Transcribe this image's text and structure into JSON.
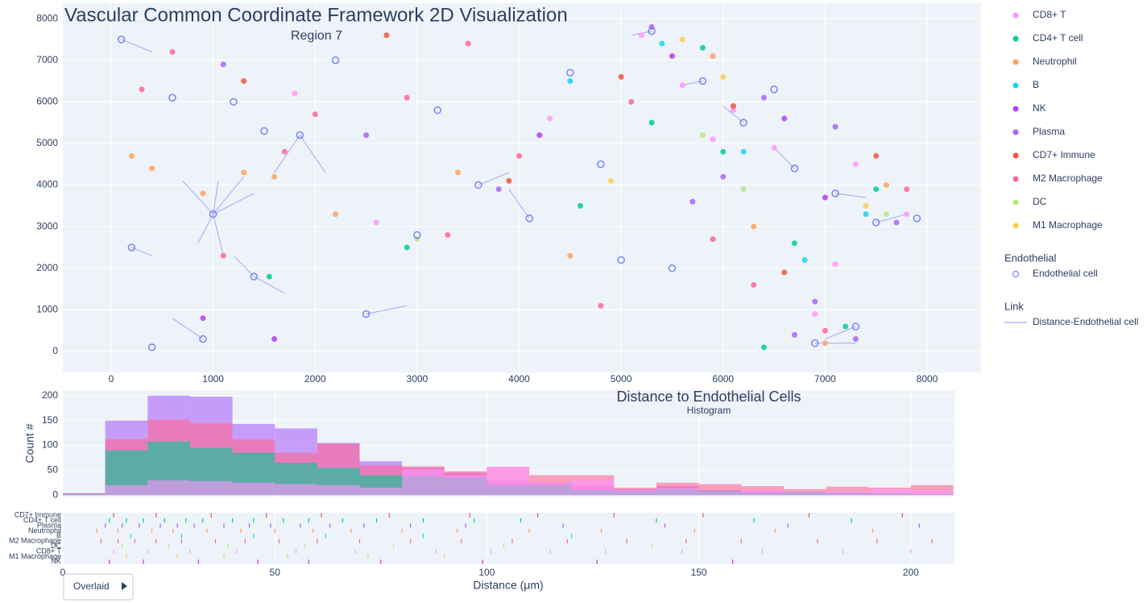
{
  "chart_data": [
    {
      "type": "scatter",
      "title": "Vascular Common Coordinate Framework 2D Visualization",
      "subtitle": "Region 7",
      "xlim": [
        -474,
        8529
      ],
      "ylim": [
        -504,
        8370
      ],
      "xticks": [
        0,
        1000,
        2000,
        3000,
        4000,
        5000,
        6000,
        7000,
        8000
      ],
      "yticks": [
        0,
        1000,
        2000,
        3000,
        4000,
        5000,
        6000,
        7000,
        8000
      ],
      "grid": true,
      "legend": "right",
      "series": [
        {
          "name": "CD8+ T",
          "color": "#FF97FF",
          "mode": "markers",
          "x": [
            5200,
            6100,
            7300,
            5600,
            7800,
            4300,
            6900,
            1800,
            2600,
            7100,
            5900,
            6500
          ],
          "y": [
            7600,
            5800,
            4500,
            6400,
            3300,
            5600,
            900,
            6200,
            3100,
            2100,
            5100,
            4900
          ]
        },
        {
          "name": "CD4+ T cell",
          "color": "#00cc96",
          "mode": "markers",
          "x": [
            5800,
            6700,
            6000,
            7200,
            4600,
            6400,
            2900,
            7500,
            5300,
            1550
          ],
          "y": [
            7300,
            2600,
            4800,
            600,
            3500,
            100,
            2500,
            3900,
            5500,
            1800
          ]
        },
        {
          "name": "Neutrophil",
          "color": "#FFA15A",
          "mode": "markers",
          "x": [
            400,
            1600,
            1300,
            5900,
            7600,
            6300,
            900,
            2200,
            3400,
            7000,
            4500,
            200
          ],
          "y": [
            4400,
            4200,
            4300,
            7100,
            4000,
            3000,
            3800,
            3300,
            4300,
            200,
            2300,
            4700
          ]
        },
        {
          "name": "B",
          "color": "#19d3f3",
          "mode": "markers",
          "x": [
            5400,
            6800,
            6200,
            4500,
            7400
          ],
          "y": [
            7400,
            2200,
            4800,
            6500,
            3300
          ]
        },
        {
          "name": "NK",
          "color": "#b83bf7",
          "mode": "markers",
          "x": [
            5500,
            6600,
            900,
            4200,
            7000,
            1600
          ],
          "y": [
            7100,
            5600,
            800,
            5200,
            3700,
            300
          ]
        },
        {
          "name": "Plasma",
          "color": "#ab63fa",
          "mode": "markers",
          "x": [
            5300,
            7100,
            6400,
            6000,
            7700,
            6900,
            5700,
            3800,
            2500,
            7300,
            6700,
            1100
          ],
          "y": [
            7800,
            5400,
            6100,
            4200,
            3100,
            1200,
            3600,
            3900,
            5200,
            300,
            400,
            6900
          ]
        },
        {
          "name": "CD7+ Immune",
          "color": "#EF553B",
          "mode": "markers",
          "x": [
            6100,
            7500,
            5000,
            3900,
            1300,
            6600,
            2700
          ],
          "y": [
            5900,
            4700,
            6600,
            4100,
            6500,
            1900,
            7600
          ]
        },
        {
          "name": "M2 Macrophage",
          "color": "#FF6692",
          "mode": "markers",
          "x": [
            300,
            1100,
            2000,
            3500,
            4800,
            5900,
            7000,
            2900,
            600,
            1700,
            4000,
            6300,
            7800,
            3300,
            5100
          ],
          "y": [
            6300,
            2300,
            5700,
            7400,
            1100,
            2700,
            500,
            6100,
            7200,
            4800,
            4700,
            1600,
            3900,
            2800,
            6000
          ]
        },
        {
          "name": "DC",
          "color": "#B6E880",
          "mode": "markers",
          "x": [
            6200,
            7600,
            5800,
            3000
          ],
          "y": [
            3900,
            3300,
            5200,
            2700
          ]
        },
        {
          "name": "M1 Macrophage",
          "color": "#FECB52",
          "mode": "markers",
          "x": [
            6000,
            7400,
            5600,
            4900
          ],
          "y": [
            6600,
            3500,
            7500,
            4100
          ]
        },
        {
          "name": "Endothelial cell",
          "legendgroup": "Endothelial",
          "color": "#636efa",
          "mode": "markers",
          "symbol": "circle-open",
          "x": [
            100,
            600,
            1000,
            1400,
            1500,
            200,
            900,
            1850,
            2200,
            3000,
            3600,
            4100,
            4500,
            5000,
            5300,
            6200,
            6700,
            7100,
            7500,
            7900,
            6900,
            5500,
            2500,
            400,
            3200,
            4800,
            5800,
            7300,
            6500,
            1200
          ],
          "y": [
            7500,
            6100,
            3300,
            1800,
            5300,
            2500,
            300,
            5200,
            7000,
            2800,
            4000,
            3200,
            6700,
            2200,
            7700,
            5500,
            4400,
            3800,
            3100,
            3200,
            200,
            2000,
            900,
            100,
            5800,
            4500,
            6500,
            600,
            6300,
            6000
          ]
        },
        {
          "name": "Distance-Endothelial cell",
          "legendgroup": "Link",
          "color": "#8f95f6",
          "mode": "lines",
          "x": [
            1000,
            1300,
            null,
            1000,
            700,
            null,
            1000,
            1100,
            null,
            1000,
            850,
            null,
            1400,
            1700,
            null,
            1400,
            1200,
            null,
            1850,
            1600,
            null,
            1850,
            2100,
            null,
            100,
            400,
            null,
            900,
            600,
            null,
            3600,
            3900,
            null,
            4100,
            3900,
            null,
            5300,
            5100,
            null,
            6200,
            6000,
            null,
            6700,
            6500,
            null,
            7100,
            7400,
            null,
            7500,
            7800,
            null,
            2500,
            2900,
            null,
            5800,
            5600,
            null,
            200,
            400,
            null,
            1000,
            1400,
            null,
            1000,
            1050,
            null,
            6900,
            7300,
            null,
            7300,
            7000
          ],
          "y": [
            3300,
            4200,
            null,
            3300,
            4100,
            null,
            3300,
            2300,
            null,
            3300,
            2600,
            null,
            1800,
            1400,
            null,
            1800,
            2300,
            null,
            5200,
            4300,
            null,
            5200,
            4300,
            null,
            7500,
            7200,
            null,
            300,
            800,
            null,
            4000,
            4300,
            null,
            3200,
            3900,
            null,
            7700,
            7600,
            null,
            5500,
            5900,
            null,
            4400,
            4900,
            null,
            3800,
            3700,
            null,
            3100,
            3300,
            null,
            900,
            1100,
            null,
            6500,
            6400,
            null,
            2500,
            2300,
            null,
            3300,
            3800,
            null,
            3300,
            4100,
            null,
            200,
            200,
            null,
            600,
            300
          ]
        }
      ]
    },
    {
      "type": "histogram",
      "title": "Distance to Endothelial Cells",
      "subtitle": "Histogram",
      "ylabel": "Count #",
      "xlim": [
        0,
        210.3
      ],
      "ylim": [
        -3,
        211
      ],
      "xticks": [
        0,
        50,
        100,
        150,
        200
      ],
      "yticks": [
        0,
        50,
        100,
        150,
        200
      ],
      "grid": true,
      "bins": [
        0,
        10,
        20,
        30,
        40,
        50,
        60,
        70,
        80,
        90,
        100,
        110,
        120,
        130,
        140,
        150,
        160,
        170,
        180,
        190,
        200,
        210
      ],
      "series": [
        {
          "name": "Plasma",
          "color": "#ab63fa",
          "values": [
            4,
            150,
            200,
            198,
            143,
            134,
            105,
            68,
            55,
            45,
            30,
            25,
            20,
            12,
            18,
            10,
            8,
            6,
            5,
            4,
            3
          ]
        },
        {
          "name": "M2 Macrophage",
          "color": "#FF6692",
          "values": [
            3,
            113,
            152,
            145,
            112,
            85,
            103,
            60,
            58,
            48,
            57,
            40,
            40,
            15,
            25,
            22,
            18,
            12,
            17,
            15,
            20
          ]
        },
        {
          "name": "CD4+ T cell",
          "color": "#00cc96",
          "values": [
            2,
            90,
            108,
            95,
            85,
            65,
            55,
            40,
            38,
            35,
            20,
            20,
            10,
            8,
            12,
            8,
            5,
            6,
            4,
            3,
            2
          ]
        },
        {
          "name": "CD8+ T",
          "color": "#FF97FF",
          "values": [
            1,
            20,
            30,
            28,
            25,
            22,
            20,
            15,
            52,
            40,
            57,
            25,
            30,
            10,
            15,
            8,
            10,
            6,
            8,
            12,
            10
          ]
        }
      ]
    },
    {
      "type": "rug",
      "xlabel": "Distance (μm)",
      "xlim": [
        0,
        210.3
      ],
      "xticks": [
        0,
        50,
        100,
        150,
        200
      ],
      "series": [
        {
          "name": "CD7+ Immune",
          "color": "#EF553B",
          "values": [
            12,
            22,
            35,
            48,
            61,
            77,
            96,
            112,
            130,
            151,
            176,
            198
          ]
        },
        {
          "name": "CD4+ T cell",
          "color": "#00cc96",
          "values": [
            11,
            15,
            19,
            24,
            29,
            33,
            40,
            45,
            52,
            58,
            66,
            74,
            85,
            97,
            108,
            140,
            163,
            186
          ]
        },
        {
          "name": "Plasma",
          "color": "#ab63fa",
          "values": [
            10,
            14,
            18,
            23,
            27,
            31,
            38,
            44,
            49,
            56,
            63,
            71,
            82,
            95,
            118,
            142,
            171,
            202
          ]
        },
        {
          "name": "Neutrophil",
          "color": "#FFA15A",
          "values": [
            8,
            13,
            21,
            26,
            34,
            42,
            50,
            59,
            68,
            80,
            93,
            110,
            127,
            149,
            168,
            191
          ]
        },
        {
          "name": "B",
          "color": "#19d3f3",
          "values": [
            16,
            28,
            45,
            62,
            85,
            120
          ]
        },
        {
          "name": "M2 Macrophage",
          "color": "#FF6692",
          "values": [
            9,
            13,
            17,
            22,
            28,
            36,
            43,
            51,
            60,
            70,
            82,
            94,
            106,
            119,
            133,
            147,
            160,
            178,
            192,
            205
          ]
        },
        {
          "name": "DC",
          "color": "#B6E880",
          "values": [
            14,
            25,
            39,
            57,
            78,
            104,
            139
          ]
        },
        {
          "name": "CD8+ T",
          "color": "#FF97FF",
          "values": [
            12,
            20,
            30,
            41,
            55,
            69,
            88,
            101,
            115,
            128,
            146,
            165,
            184,
            200
          ]
        },
        {
          "name": "M1 Macrophage",
          "color": "#FECB52",
          "values": [
            15,
            27,
            38,
            53,
            72,
            90
          ]
        },
        {
          "name": "NK",
          "color": "#b83bf7",
          "values": [
            11,
            19,
            32,
            46,
            58,
            75,
            99,
            126,
            158
          ]
        }
      ]
    }
  ],
  "controls": {
    "histogram_mode": "Overlaid"
  }
}
